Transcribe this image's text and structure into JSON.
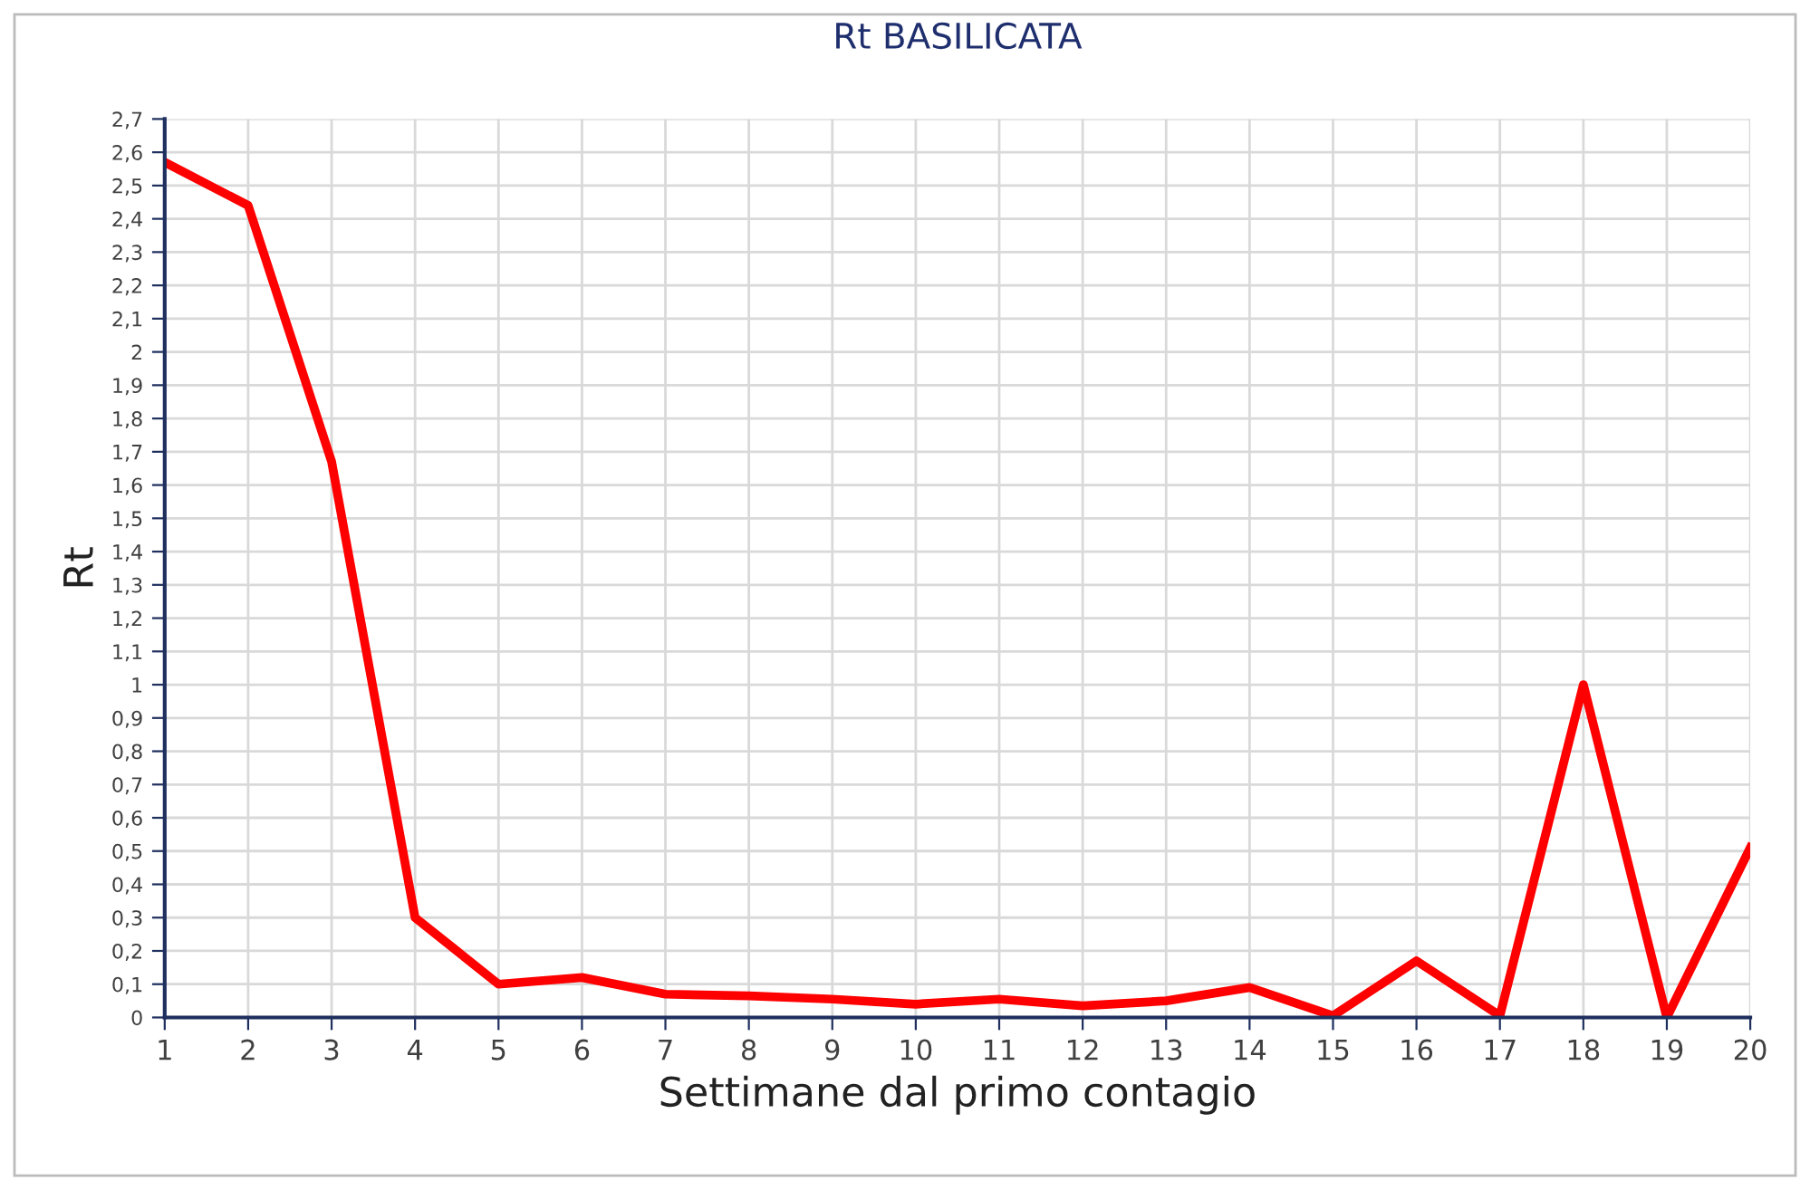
{
  "chart_data": {
    "type": "line",
    "title": "Rt BASILICATA",
    "xlabel": "Settimane dal primo contagio",
    "ylabel": "Rt",
    "x": [
      1,
      2,
      3,
      4,
      5,
      6,
      7,
      8,
      9,
      10,
      11,
      12,
      13,
      14,
      15,
      16,
      17,
      18,
      19,
      20
    ],
    "series": [
      {
        "color": "#ff0000",
        "values": [
          2.57,
          2.44,
          1.67,
          0.3,
          0.1,
          0.12,
          0.07,
          0.065,
          0.055,
          0.04,
          0.055,
          0.035,
          0.05,
          0.09,
          0.005,
          0.17,
          0.005,
          1.0,
          0.0,
          0.51
        ]
      }
    ],
    "xlim": [
      1,
      20
    ],
    "xticks": [
      1,
      2,
      3,
      4,
      5,
      6,
      7,
      8,
      9,
      10,
      11,
      12,
      13,
      14,
      15,
      16,
      17,
      18,
      19,
      20
    ],
    "ylim": [
      0,
      2.7
    ],
    "yticks": [
      0,
      {
        "value": 0.1,
        "label": "0,1"
      },
      {
        "value": 0.2,
        "label": "0,2"
      },
      {
        "value": 0.3,
        "label": "0,3"
      },
      {
        "value": 0.4,
        "label": "0,4"
      },
      {
        "value": 0.5,
        "label": "0,5"
      },
      {
        "value": 0.6,
        "label": "0,6"
      },
      {
        "value": 0.7,
        "label": "0,7"
      },
      {
        "value": 0.8,
        "label": "0,8"
      },
      {
        "value": 0.9,
        "label": "0,9"
      },
      1,
      {
        "value": 1.1,
        "label": "1,1"
      },
      {
        "value": 1.2,
        "label": "1,2"
      },
      {
        "value": 1.3,
        "label": "1,3"
      },
      {
        "value": 1.4,
        "label": "1,4"
      },
      {
        "value": 1.5,
        "label": "1,5"
      },
      {
        "value": 1.6,
        "label": "1,6"
      },
      {
        "value": 1.7,
        "label": "1,7"
      },
      {
        "value": 1.8,
        "label": "1,8"
      },
      {
        "value": 1.9,
        "label": "1,9"
      },
      2,
      {
        "value": 2.1,
        "label": "2,1"
      },
      {
        "value": 2.2,
        "label": "2,2"
      },
      {
        "value": 2.3,
        "label": "2,3"
      },
      {
        "value": 2.4,
        "label": "2,4"
      },
      {
        "value": 2.5,
        "label": "2,5"
      },
      {
        "value": 2.6,
        "label": "2,6"
      },
      {
        "value": 2.7,
        "label": "2,7"
      }
    ],
    "grid": true,
    "legend": false,
    "marker": "none",
    "line_style": "solid"
  }
}
